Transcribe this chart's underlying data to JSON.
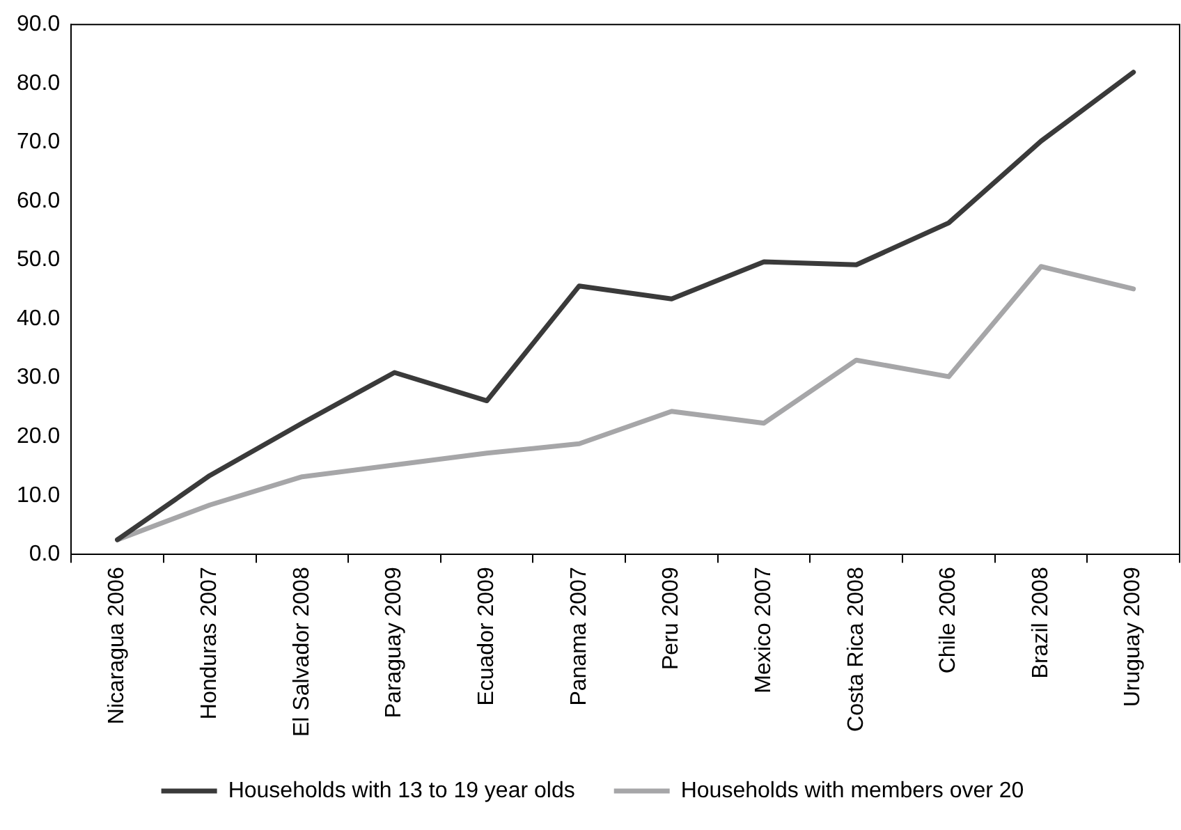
{
  "chart_data": {
    "type": "line",
    "categories": [
      "Nicaragua 2006",
      "Honduras 2007",
      "El Salvador 2008",
      "Paraguay 2009",
      "Ecuador 2009",
      "Panama 2007",
      "Peru 2009",
      "Mexico 2007",
      "Costa Rica 2008",
      "Chile 2006",
      "Brazil 2008",
      "Uruguay 2009"
    ],
    "series": [
      {
        "name": "Households with 13 to 19 year olds",
        "color": "#3a3a3a",
        "values": [
          2.5,
          13.4,
          22.3,
          30.9,
          26.1,
          45.6,
          43.4,
          49.7,
          49.2,
          56.3,
          70.2,
          81.9
        ]
      },
      {
        "name": "Households with members over 20",
        "color": "#a6a6a8",
        "values": [
          2.5,
          8.4,
          13.2,
          15.2,
          17.2,
          18.8,
          24.3,
          22.3,
          33.0,
          30.2,
          48.9,
          45.1
        ]
      }
    ],
    "ylim": [
      0,
      90
    ],
    "yticks": [
      {
        "value": 0,
        "label": "0.0"
      },
      {
        "value": 10,
        "label": "10.0"
      },
      {
        "value": 20,
        "label": "20.0"
      },
      {
        "value": 30,
        "label": "30.0"
      },
      {
        "value": 40,
        "label": "40.0"
      },
      {
        "value": 50,
        "label": "50.0"
      },
      {
        "value": 60,
        "label": "60.0"
      },
      {
        "value": 70,
        "label": "70.0"
      },
      {
        "value": 80,
        "label": "80.0"
      },
      {
        "value": 90,
        "label": "90.0"
      }
    ],
    "grid": false,
    "legend": "bottom",
    "marker": "none",
    "line_style": "solid"
  }
}
